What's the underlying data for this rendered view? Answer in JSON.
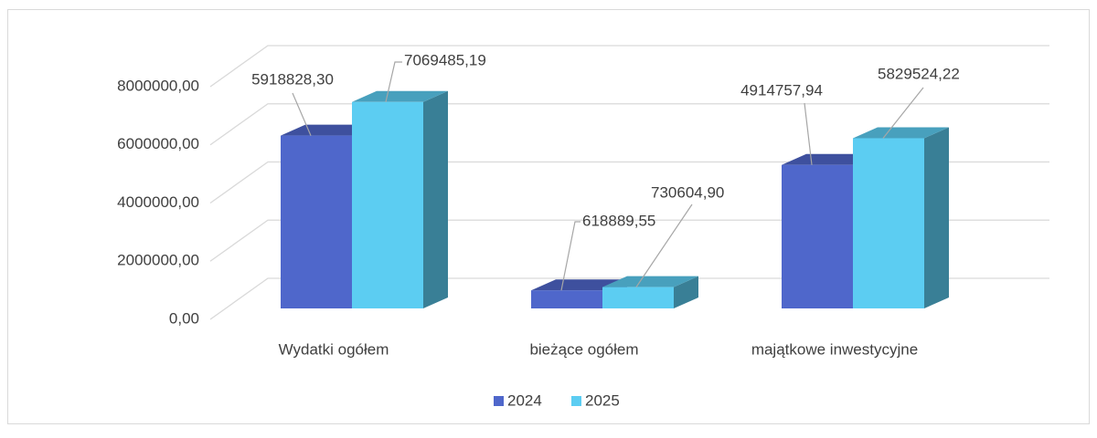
{
  "chart_data": {
    "type": "bar3d",
    "categories": [
      "Wydatki ogółem",
      "bieżące ogółem",
      "majątkowe inwestycyjne"
    ],
    "series": [
      {
        "name": "2024",
        "color": "#4f67cb",
        "values": [
          5918828.3,
          618889.55,
          4914757.94
        ],
        "value_labels": [
          "5918828,30",
          "618889,55",
          "4914757,94"
        ]
      },
      {
        "name": "2025",
        "color": "#5ccdf2",
        "values": [
          7069485.19,
          730604.9,
          5829524.22
        ],
        "value_labels": [
          "7069485,19",
          "730604,90",
          "5829524,22"
        ]
      }
    ],
    "ylim": [
      0,
      8000000
    ],
    "yticks": [
      {
        "value": 0,
        "label": "0,00"
      },
      {
        "value": 2000000,
        "label": "2000000,00"
      },
      {
        "value": 4000000,
        "label": "4000000,00"
      },
      {
        "value": 6000000,
        "label": "6000000,00"
      },
      {
        "value": 8000000,
        "label": "8000000,00"
      }
    ],
    "grid": true,
    "legend": "bottom"
  }
}
